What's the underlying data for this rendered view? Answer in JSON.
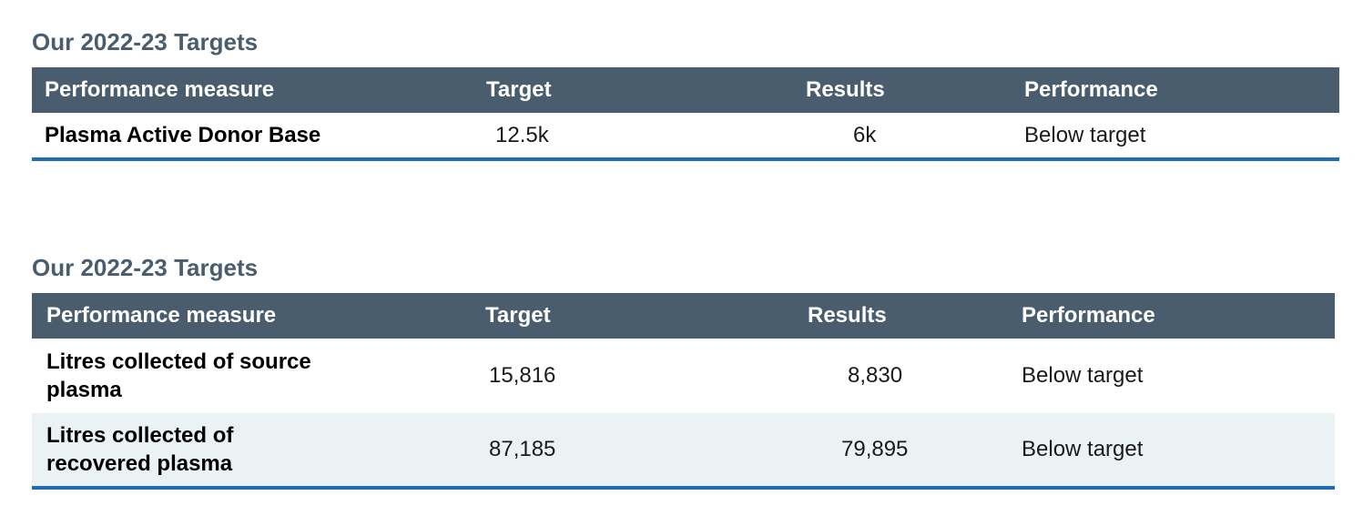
{
  "tables": [
    {
      "title": "Our 2022-23 Targets",
      "headers": [
        "Performance measure",
        "Target",
        "Results",
        "Performance"
      ],
      "rows": [
        {
          "measure": "Plasma Active Donor Base",
          "target": "12.5k",
          "results": "6k",
          "performance": "Below target"
        }
      ]
    },
    {
      "title": "Our 2022-23 Targets",
      "headers": [
        "Performance measure",
        "Target",
        "Results",
        "Performance"
      ],
      "rows": [
        {
          "measure": "Litres collected of source plasma",
          "target": "15,816",
          "results": "8,830",
          "performance": "Below target"
        },
        {
          "measure": "Litres collected of recovered plasma",
          "target": "87,185",
          "results": "79,895",
          "performance": "Below target"
        }
      ]
    }
  ],
  "colors": {
    "header_bg": "#4a5d6e",
    "title": "#4a5d6e",
    "rule": "#1f6db3",
    "shade": "#ebf2f3"
  }
}
